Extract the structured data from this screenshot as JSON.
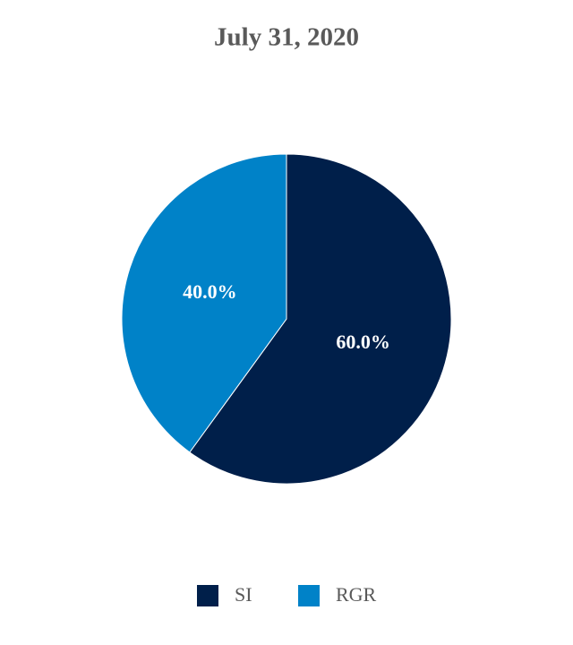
{
  "chart_data": {
    "type": "pie",
    "title": "July 31, 2020",
    "categories": [
      "SI",
      "RGR"
    ],
    "values": [
      60,
      40
    ],
    "value_labels": [
      "60.0%",
      "40.0%"
    ],
    "colors": [
      "#001f4a",
      "#0082c8"
    ],
    "legend": "bottom"
  }
}
